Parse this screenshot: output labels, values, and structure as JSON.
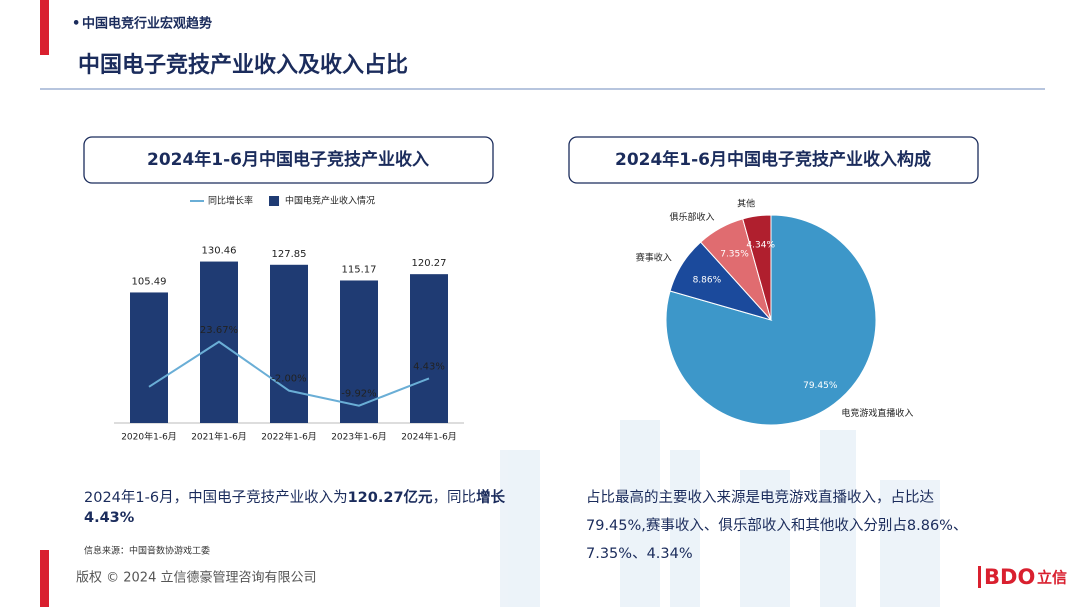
{
  "header": {
    "section": "中国电竞行业宏观趋势",
    "title": "中国电子竞技产业收入及收入占比"
  },
  "chart_data": [
    {
      "type": "bar_line",
      "title": "2024年1-6月中国电子竞技产业收入",
      "categories": [
        "2020年1-6月",
        "2021年1-6月",
        "2022年1-6月",
        "2023年1-6月",
        "2024年1-6月"
      ],
      "series": [
        {
          "name": "同比增长率",
          "type": "line",
          "axis": "y2",
          "color": "#6aaed6",
          "values": [
            0,
            23.67,
            -2.0,
            -9.92,
            4.43
          ],
          "value_labels": [
            null,
            "23.67%",
            "-2.00%",
            "-9.92%",
            "4.43%"
          ]
        },
        {
          "name": "中国电竞产业收入情况",
          "type": "bar",
          "color": "#1f3b73",
          "values": [
            105.49,
            130.46,
            127.85,
            115.17,
            120.27
          ]
        }
      ],
      "ylim": [
        0,
        160
      ],
      "y2lim": [
        -19,
        85
      ],
      "legend": "top"
    },
    {
      "type": "pie",
      "title": "2024年1-6月中国电子竞技产业收入构成",
      "categories": [
        "电竞游戏直播收入",
        "赛事收入",
        "俱乐部收入",
        "其他"
      ],
      "values": [
        79.45,
        8.86,
        7.35,
        4.34
      ],
      "value_labels": [
        "79.45%",
        "8.86%",
        "7.35%",
        "4.34%"
      ],
      "colors": [
        "#3d97c9",
        "#1b4a9c",
        "#e06c70",
        "#b01f2e"
      ]
    }
  ],
  "summary_left": {
    "lines": [
      [
        {
          "text": "2024年1-6月，中国电子竞技产业收入为",
          "bold": false
        },
        {
          "text": "120.27亿元",
          "bold": true
        },
        {
          "text": "，同比",
          "bold": false
        },
        {
          "text": "增长",
          "bold": true
        }
      ],
      [
        {
          "text": "4.43%",
          "bold": true
        }
      ]
    ]
  },
  "summary_right": {
    "lines": [
      "占比最高的主要收入来源是电竞游戏直播收入，占比达",
      "79.45%,赛事收入、俱乐部收入和其他收入分别占8.86%、",
      "7.35%、4.34%"
    ]
  },
  "source": "信息来源：中国音数协游戏工委",
  "footer": {
    "copyright": "版权 © 2024 立信德豪管理咨询有限公司",
    "logo": "BDO",
    "logo_cn": "立信"
  }
}
